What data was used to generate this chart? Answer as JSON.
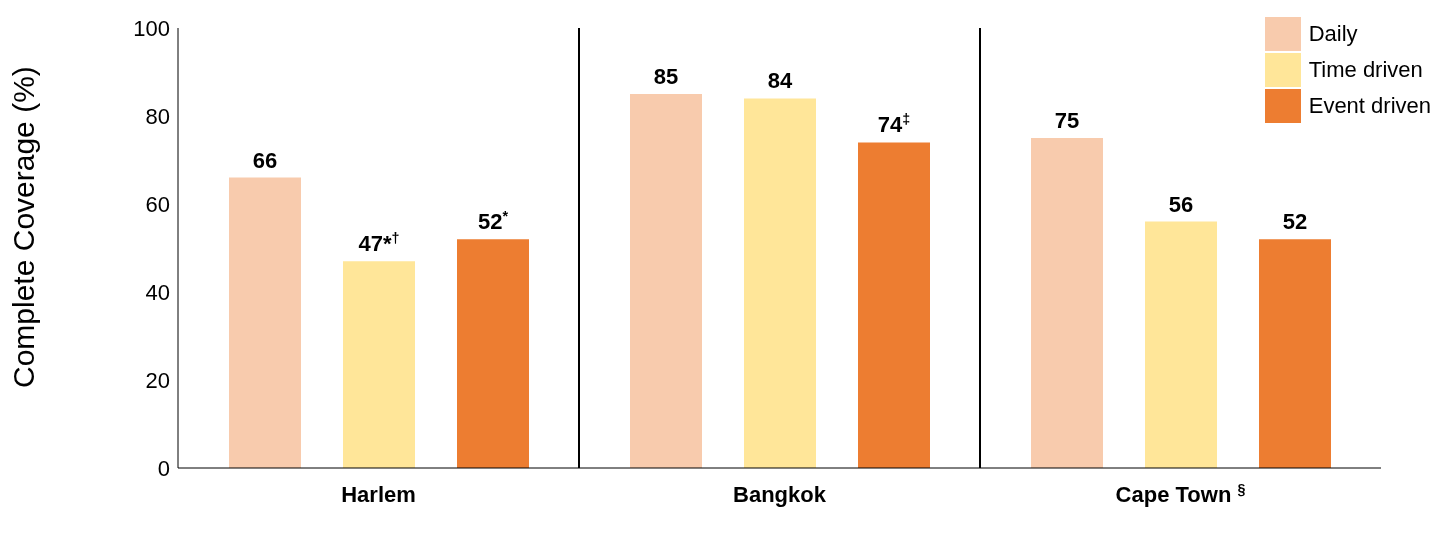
{
  "chart_data": {
    "type": "bar",
    "ylabel": "Complete Coverage (%)",
    "categories": [
      "Harlem",
      "Bangkok",
      "Cape Town $^{§}$"
    ],
    "series": [
      {
        "name": "Daily",
        "color": "#f8cbad",
        "values": [
          66,
          85,
          75
        ],
        "value_labels": [
          "66",
          "85",
          "75"
        ]
      },
      {
        "name": "Time driven",
        "color": "#ffe699",
        "values": [
          47,
          84,
          56
        ],
        "value_labels": [
          "47*$^{†}$",
          "84",
          "56"
        ]
      },
      {
        "name": "Event driven",
        "color": "#ed7d31",
        "values": [
          52,
          74,
          52
        ],
        "value_labels": [
          "52$^{*}$",
          "74$^{‡}$",
          "52"
        ]
      }
    ],
    "ylim": [
      0,
      100
    ],
    "yticks": [
      0,
      20,
      40,
      60,
      80,
      100
    ],
    "grid": false,
    "legend": "top right"
  }
}
